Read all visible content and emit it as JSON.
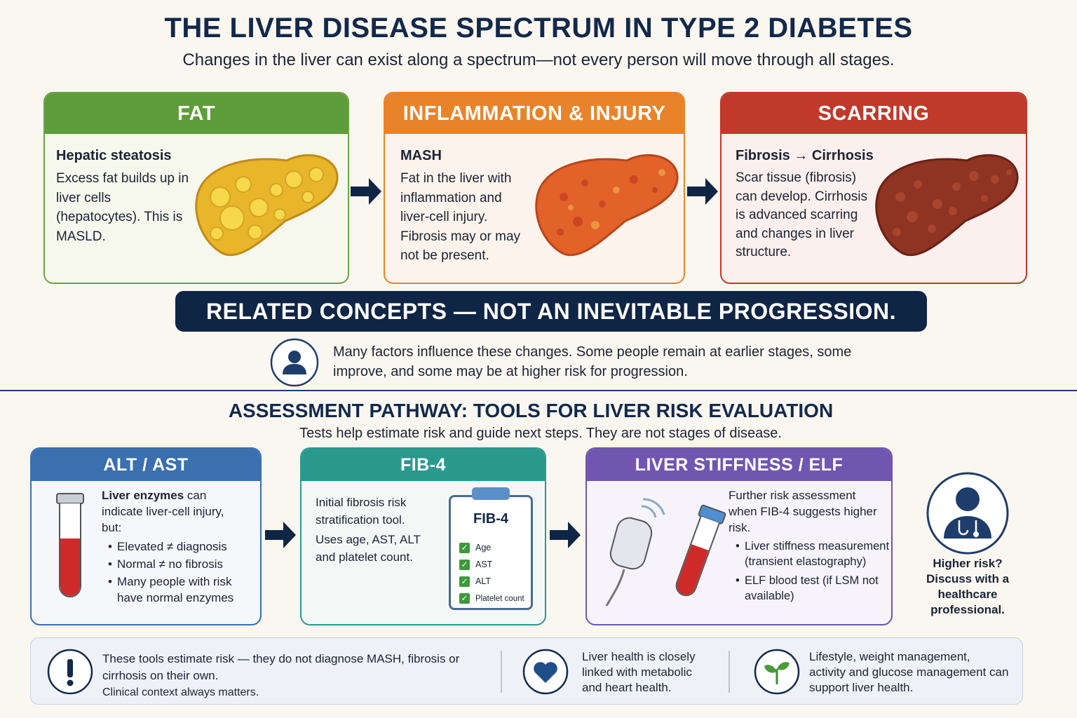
{
  "header": {
    "title": "THE LIVER DISEASE SPECTRUM IN TYPE 2 DIABETES",
    "subtitle": "Changes in the liver can exist along a spectrum—not every person will move through all stages."
  },
  "stages": [
    {
      "heading": "FAT",
      "subtitle": "Hepatic steatosis",
      "text": "Excess fat builds up in liver cells (hepatocytes). This is MASLD."
    },
    {
      "heading": "INFLAMMATION & INJURY",
      "subtitle": "MASH",
      "text": "Fat in the liver with inflammation and liver-cell injury. Fibrosis may or may not be present."
    },
    {
      "heading": "SCARRING",
      "subtitle": "Fibrosis → Cirrhosis",
      "text": "Scar tissue (fibrosis) can develop. Cirrhosis is advanced scarring and changes in liver structure."
    }
  ],
  "banner": "RELATED CONCEPTS — NOT AN INEVITABLE PROGRESSION.",
  "note": "Many factors influence these changes. Some people remain at earlier stages, some improve, and some may be at higher risk for progression.",
  "assessment": {
    "title": "ASSESSMENT PATHWAY: TOOLS FOR LIVER RISK EVALUATION",
    "subtitle": "Tests help estimate risk and guide next steps. They are not stages of disease."
  },
  "tools": [
    {
      "heading": "ALT / AST",
      "lead_bold": "Liver enzymes",
      "lead": "can indicate liver-cell injury, but:",
      "bullets": [
        "Elevated ≠ diagnosis",
        "Normal ≠ no fibrosis",
        "Many people with risk have normal enzymes"
      ]
    },
    {
      "heading": "FIB-4",
      "text": "Initial fibrosis risk stratification tool.",
      "text2": "Uses age, AST, ALT and platelet count.",
      "card_title": "FIB-4",
      "checklist": [
        "Age",
        "AST",
        "ALT",
        "Platelet count"
      ]
    },
    {
      "heading": "LIVER STIFFNESS / ELF",
      "lead": "Further risk assessment when FIB-4 suggests higher risk.",
      "bullets": [
        "Liver stiffness measurement (transient elastography)",
        "ELF blood test (if LSM not available)"
      ]
    }
  ],
  "referral": {
    "question": "Higher risk?",
    "text": "Discuss with a healthcare professional."
  },
  "footer": [
    {
      "text": "These tools estimate risk — they do not diagnose MASH, fibrosis or cirrhosis on their own.",
      "note": "Clinical context always matters."
    },
    {
      "text": "Liver health is closely linked with metabolic and heart health."
    },
    {
      "text": "Lifestyle, weight management, activity and glucose management can support liver health."
    }
  ]
}
